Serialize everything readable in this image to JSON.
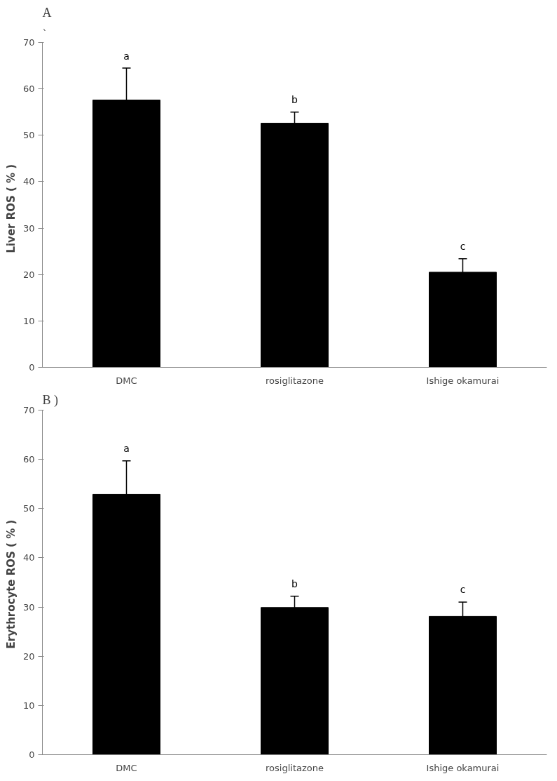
{
  "chart_data": [
    {
      "type": "bar",
      "title": "A",
      "ylabel": "Liver  ROS  ( % )",
      "categories": [
        "DMC",
        "rosiglitazone",
        "Ishige okamurai"
      ],
      "series": [
        {
          "color": "#000000",
          "values": [
            57.6,
            52.6,
            20.5
          ],
          "errors": [
            6.9,
            2.4,
            2.9
          ]
        }
      ],
      "ylim": [
        0,
        70
      ],
      "yticks": [
        0,
        10,
        20,
        30,
        40,
        50,
        60,
        70
      ],
      "annotations": [
        "`",
        "a",
        "b",
        "c"
      ]
    },
    {
      "type": "bar",
      "title": "B )",
      "ylabel": "Erythrocyte  ROS ( % )",
      "categories": [
        "DMC",
        "rosiglitazone",
        "Ishige okamurai"
      ],
      "series": [
        {
          "color": "#000000",
          "values": [
            52.9,
            29.9,
            28.1
          ],
          "errors": [
            6.8,
            2.3,
            2.9
          ]
        }
      ],
      "ylim": [
        0,
        70
      ],
      "yticks": [
        0,
        10,
        20,
        30,
        40,
        50,
        60,
        70
      ],
      "annotations": [
        "a",
        "b",
        "c"
      ]
    }
  ]
}
